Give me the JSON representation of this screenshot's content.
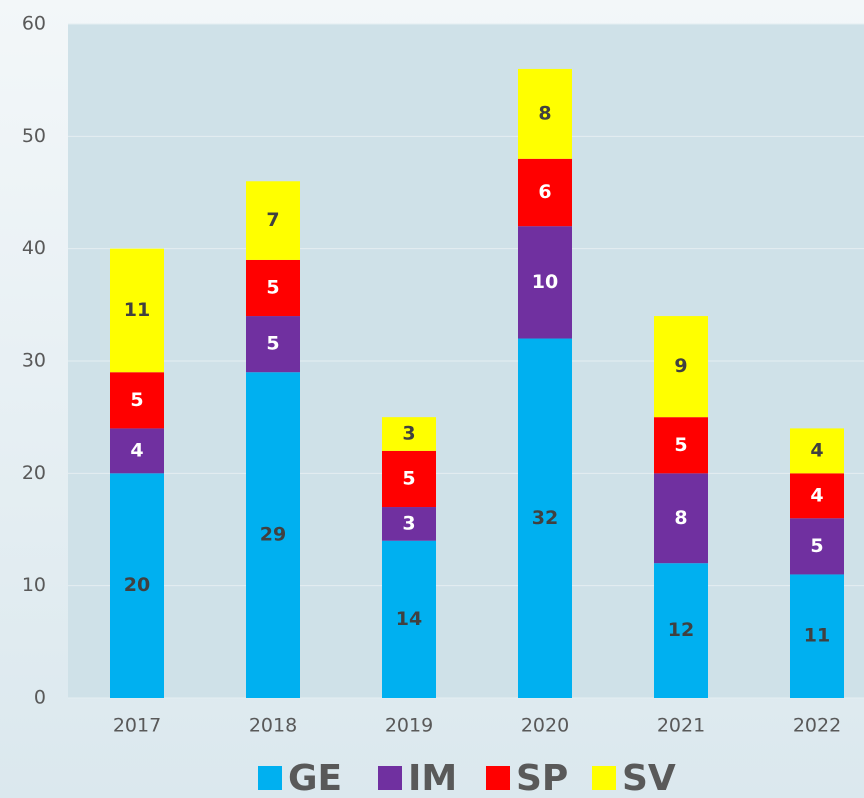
{
  "chart_data": {
    "type": "stacked_bar",
    "categories": [
      "2017",
      "2018",
      "2019",
      "2020",
      "2021",
      "2022"
    ],
    "series": [
      {
        "name": "GE",
        "color": "#00b0f0",
        "label_color": "#404040",
        "values": [
          20,
          29,
          14,
          32,
          12,
          11
        ]
      },
      {
        "name": "IM",
        "color": "#7030a0",
        "label_color": "#ffffff",
        "values": [
          4,
          5,
          3,
          10,
          8,
          5
        ]
      },
      {
        "name": "SP",
        "color": "#ff0000",
        "label_color": "#ffffff",
        "values": [
          5,
          5,
          5,
          6,
          5,
          4
        ]
      },
      {
        "name": "SV",
        "color": "#ffff00",
        "label_color": "#404040",
        "values": [
          11,
          7,
          3,
          8,
          9,
          4
        ]
      }
    ],
    "ylim": [
      0,
      60
    ],
    "yticks": [
      0,
      10,
      20,
      30,
      40,
      50,
      60
    ],
    "grid": true,
    "legend": "bottom"
  }
}
